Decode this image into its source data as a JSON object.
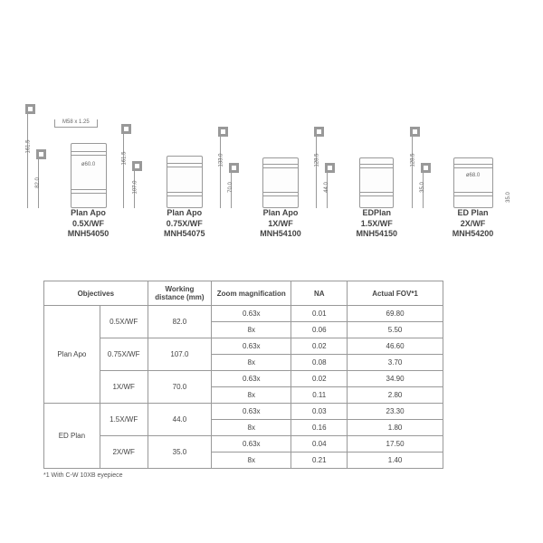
{
  "thread_label": "M58 x 1.25",
  "objectives": [
    {
      "name": "Plan Apo",
      "mag": "0.5X/WF",
      "code": "MNH54050",
      "total_h": 161.5,
      "wd": 82.0,
      "body_h": 72,
      "body_w": 40,
      "dia_label": "ø60.0",
      "has_dia": true,
      "has_thread": true
    },
    {
      "name": "Plan Apo",
      "mag": "0.75X/WF",
      "code": "MNH54075",
      "total_h": 161.5,
      "wd": 107.0,
      "body_h": 58,
      "body_w": 40,
      "dia_label": "",
      "has_dia": false,
      "has_thread": false
    },
    {
      "name": "Plan Apo",
      "mag": "1X/WF",
      "code": "MNH54100",
      "total_h": 133.0,
      "wd": 70.0,
      "body_h": 56,
      "body_w": 40,
      "dia_label": "",
      "has_dia": false,
      "has_thread": false
    },
    {
      "name": "EDPlan",
      "mag": "1.5X/WF",
      "code": "MNH54150",
      "total_h": 128.5,
      "wd": 44.0,
      "body_h": 56,
      "body_w": 38,
      "dia_label": "",
      "has_dia": false,
      "has_thread": false
    },
    {
      "name": "ED Plan",
      "mag": "2X/WF",
      "code": "MNH54200",
      "total_h": 128.5,
      "wd": 35.0,
      "body_h": 56,
      "body_w": 44,
      "dia_label": "ø68.0",
      "has_dia": true,
      "has_thread": false
    }
  ],
  "table": {
    "headers": [
      "Objectives",
      "",
      "Working distance (mm)",
      "Zoom magnification",
      "NA",
      "Actual FOV*1"
    ],
    "col_widths_pct": [
      14,
      12,
      16,
      20,
      14,
      24
    ],
    "groups": [
      {
        "series": "Plan Apo",
        "models": [
          {
            "mag": "0.5X/WF",
            "wd": "82.0",
            "rows": [
              [
                "0.63x",
                "0.01",
                "69.80"
              ],
              [
                "8x",
                "0.06",
                "5.50"
              ]
            ]
          },
          {
            "mag": "0.75X/WF",
            "wd": "107.0",
            "rows": [
              [
                "0.63x",
                "0.02",
                "46.60"
              ],
              [
                "8x",
                "0.08",
                "3.70"
              ]
            ]
          },
          {
            "mag": "1X/WF",
            "wd": "70.0",
            "rows": [
              [
                "0.63x",
                "0.02",
                "34.90"
              ],
              [
                "8x",
                "0.11",
                "2.80"
              ]
            ]
          }
        ]
      },
      {
        "series": "ED Plan",
        "models": [
          {
            "mag": "1.5X/WF",
            "wd": "44.0",
            "rows": [
              [
                "0.63x",
                "0.03",
                "23.30"
              ],
              [
                "8x",
                "0.16",
                "1.80"
              ]
            ]
          },
          {
            "mag": "2X/WF",
            "wd": "35.0",
            "rows": [
              [
                "0.63x",
                "0.04",
                "17.50"
              ],
              [
                "8x",
                "0.21",
                "1.40"
              ]
            ]
          }
        ]
      }
    ],
    "footnote": "*1 With C-W 10XB eyepiece"
  },
  "colors": {
    "border": "#999999",
    "text": "#444444",
    "bg": "#ffffff"
  }
}
